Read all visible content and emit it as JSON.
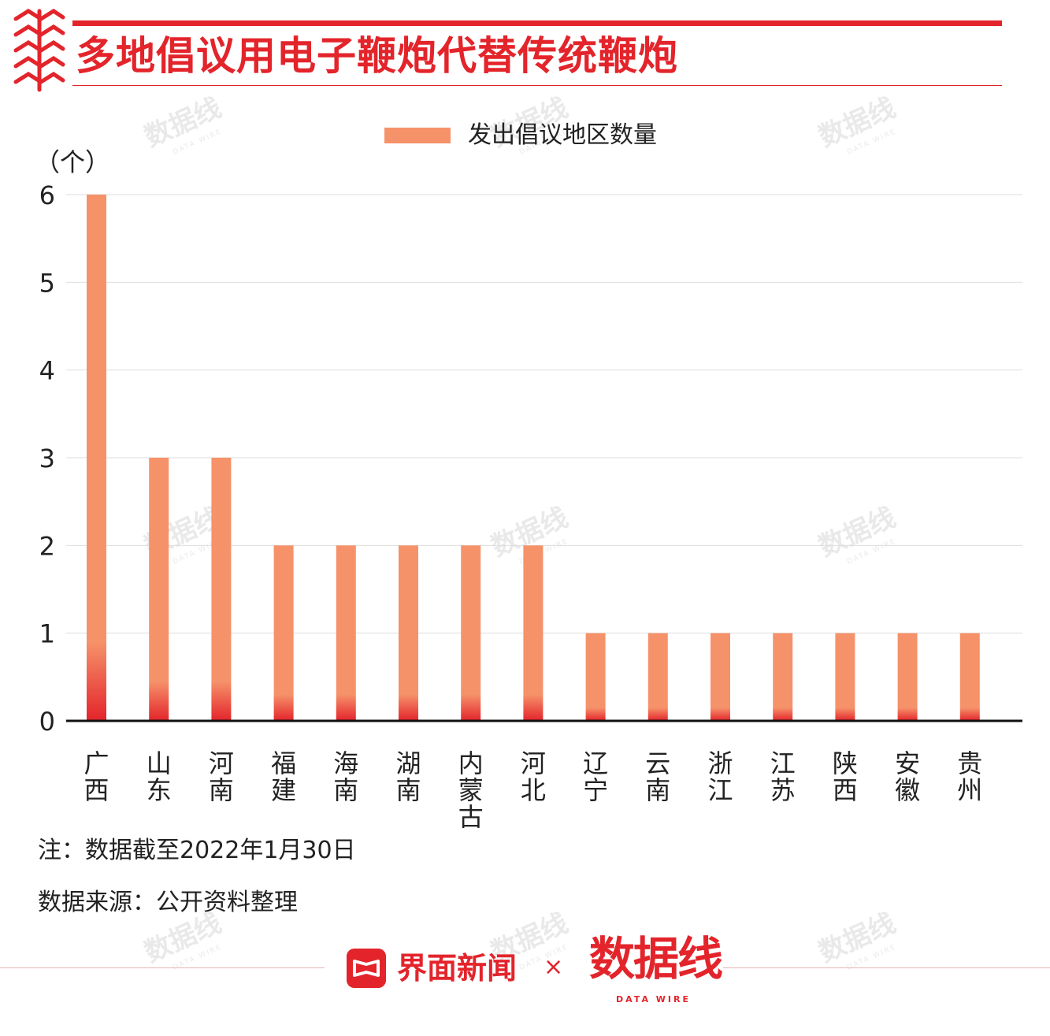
{
  "header": {
    "title": "多地倡议用电子鞭炮代替传统鞭炮",
    "accent_color": "#e3242b"
  },
  "watermark": {
    "text": "数据线",
    "sub": "DATA WIRE"
  },
  "legend": {
    "label": "发出倡议地区数量",
    "color": "#f6926a"
  },
  "chart_unit_label": "（个）",
  "chart_data": {
    "type": "bar",
    "categories": [
      "广西",
      "山东",
      "河南",
      "福建",
      "海南",
      "湖南",
      "内蒙古",
      "河北",
      "辽宁",
      "云南",
      "浙江",
      "江苏",
      "陕西",
      "安徽",
      "贵州"
    ],
    "series": [
      {
        "name": "发出倡议地区数量",
        "values": [
          6,
          3,
          3,
          2,
          2,
          2,
          2,
          2,
          1,
          1,
          1,
          1,
          1,
          1,
          1
        ]
      }
    ],
    "yticks": [
      0,
      1,
      2,
      3,
      4,
      5,
      6
    ],
    "ylim": [
      0,
      6
    ],
    "ylabel": "（个）",
    "grid": true,
    "legend_position": "top-center",
    "bar_gradient": {
      "top": "#f6926a",
      "bottom": "#e3242b"
    }
  },
  "notes": {
    "note": "注：数据截至2022年1月30日",
    "source": "数据来源：公开资料整理"
  },
  "footer": {
    "brand_name": "界面新闻",
    "cross": "×",
    "partner_logo": "数据线",
    "partner_sub": "DATA WIRE"
  }
}
